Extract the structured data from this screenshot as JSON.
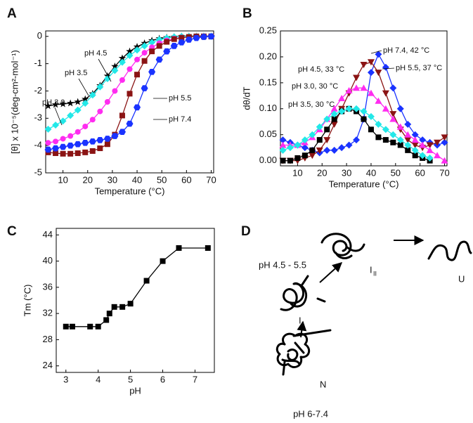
{
  "chart_data": [
    {
      "type": "line",
      "panel_label": "A",
      "xlabel": "Temperature (°C)",
      "ylabel": "[θ] x 10⁻⁵(deg-cm²-mol⁻¹)",
      "x": [
        4,
        7,
        10,
        13,
        16,
        19,
        22,
        25,
        28,
        31,
        34,
        37,
        40,
        43,
        46,
        49,
        52,
        55,
        58,
        61,
        64,
        67,
        70
      ],
      "xlim": [
        3,
        71
      ],
      "xticks": [
        10,
        20,
        30,
        40,
        50,
        60,
        70
      ],
      "ylim": [
        -5,
        0.2
      ],
      "yticks": [
        0,
        -1,
        -2,
        -3,
        -4,
        -5
      ],
      "series": [
        {
          "name": "pH 3.0",
          "color": "#000000",
          "marker": "star",
          "values": [
            -2.55,
            -2.5,
            -2.48,
            -2.45,
            -2.4,
            -2.3,
            -2.1,
            -1.8,
            -1.45,
            -1.1,
            -0.8,
            -0.55,
            -0.38,
            -0.25,
            -0.15,
            -0.08,
            -0.04,
            -0.02,
            0,
            0,
            0,
            0,
            0
          ]
        },
        {
          "name": "pH 3.5",
          "color": "#22e8e8",
          "marker": "diamond",
          "values": [
            -3.4,
            -3.25,
            -3.1,
            -2.9,
            -2.7,
            -2.45,
            -2.15,
            -1.85,
            -1.55,
            -1.25,
            -0.95,
            -0.7,
            -0.5,
            -0.35,
            -0.22,
            -0.12,
            -0.06,
            -0.02,
            0,
            0,
            0,
            0,
            0
          ]
        },
        {
          "name": "pH 4.5",
          "color": "#ff2cf0",
          "marker": "circle",
          "values": [
            -3.9,
            -3.85,
            -3.75,
            -3.65,
            -3.5,
            -3.3,
            -3.05,
            -2.75,
            -2.4,
            -2.0,
            -1.6,
            -1.2,
            -0.85,
            -0.6,
            -0.4,
            -0.25,
            -0.15,
            -0.08,
            -0.04,
            -0.02,
            0,
            0,
            0
          ]
        },
        {
          "name": "pH 5.5",
          "color": "#8b1414",
          "marker": "square",
          "values": [
            -4.25,
            -4.28,
            -4.3,
            -4.3,
            -4.28,
            -4.25,
            -4.2,
            -4.1,
            -3.95,
            -3.6,
            -2.9,
            -2.1,
            -1.4,
            -0.9,
            -0.55,
            -0.35,
            -0.2,
            -0.1,
            -0.05,
            -0.02,
            0,
            0,
            0
          ]
        },
        {
          "name": "pH 7.4",
          "color": "#1a33ff",
          "marker": "hexagon",
          "values": [
            -4.15,
            -4.1,
            -4.05,
            -4.0,
            -3.95,
            -3.9,
            -3.85,
            -3.8,
            -3.75,
            -3.65,
            -3.5,
            -3.2,
            -2.6,
            -1.9,
            -1.3,
            -0.85,
            -0.55,
            -0.35,
            -0.22,
            -0.12,
            -0.06,
            -0.02,
            0
          ]
        }
      ]
    },
    {
      "type": "line",
      "panel_label": "B",
      "xlabel": "Temperature (°C)",
      "ylabel": "dθ/dT",
      "x": [
        4,
        7,
        10,
        13,
        16,
        19,
        22,
        25,
        28,
        31,
        34,
        37,
        40,
        43,
        46,
        49,
        52,
        55,
        58,
        61,
        64,
        67,
        70
      ],
      "xlim": [
        3,
        71
      ],
      "xticks": [
        10,
        20,
        30,
        40,
        50,
        60,
        70
      ],
      "ylim": [
        -0.01,
        0.25
      ],
      "yticks": [
        {
          "value": 0,
          "label": "0.00"
        },
        0.05,
        {
          "value": 0.1,
          "label": "0.10"
        },
        0.15,
        {
          "value": 0.2,
          "label": "0.20"
        },
        0.25
      ],
      "series": [
        {
          "name": "pH 7.4, 42 °C",
          "color": "#1a33ff",
          "marker": "diamond",
          "values": [
            0.04,
            0.035,
            0.03,
            0.025,
            0.02,
            0.015,
            0.02,
            0.02,
            0.025,
            0.03,
            0.04,
            0.08,
            0.17,
            0.205,
            0.18,
            0.14,
            0.1,
            0.07,
            0.05,
            0.04,
            0.035,
            0.03,
            0.035
          ]
        },
        {
          "name": "pH 5.5, 37 °C",
          "color": "#8b1414",
          "marker": "tri-down",
          "values": [
            0.0,
            0.0,
            0.0,
            0.005,
            0.01,
            0.02,
            0.04,
            0.07,
            0.1,
            0.13,
            0.16,
            0.185,
            0.19,
            0.17,
            0.13,
            0.09,
            0.06,
            0.04,
            0.03,
            0.025,
            0.03,
            0.035,
            0.045
          ]
        },
        {
          "name": "pH 4.5, 33 °C",
          "color": "#ff2cf0",
          "marker": "tri-up",
          "values": [
            0.03,
            0.03,
            0.03,
            0.035,
            0.045,
            0.06,
            0.08,
            0.1,
            0.12,
            0.135,
            0.14,
            0.14,
            0.13,
            0.115,
            0.1,
            0.08,
            0.065,
            0.05,
            0.04,
            0.03,
            0.02,
            0.01,
            0.0
          ]
        },
        {
          "name": "pH 3.0, 30 °C",
          "color": "#000000",
          "marker": "square",
          "values": [
            0.0,
            0.0,
            0.005,
            0.01,
            0.02,
            0.04,
            0.06,
            0.08,
            0.095,
            0.1,
            0.095,
            0.08,
            0.06,
            0.045,
            0.04,
            0.035,
            0.03,
            0.02,
            0.01,
            0.005,
            0,
            null,
            null
          ]
        },
        {
          "name": "pH 3.5, 30 °C",
          "color": "#22e8e8",
          "marker": "diamond",
          "values": [
            0.02,
            0.025,
            0.03,
            0.04,
            0.05,
            0.065,
            0.08,
            0.09,
            0.095,
            0.1,
            0.1,
            0.095,
            0.085,
            0.07,
            0.06,
            0.05,
            0.04,
            0.03,
            0.02,
            0.01,
            0.005,
            null,
            null
          ]
        }
      ]
    },
    {
      "type": "line",
      "panel_label": "C",
      "xlabel": "pH",
      "ylabel": "Tm (°C)",
      "x": [
        3,
        3.2,
        3.75,
        4,
        4.25,
        4.35,
        4.5,
        4.75,
        5,
        5.5,
        6,
        6.5,
        7.4
      ],
      "values": [
        30,
        30,
        30,
        30,
        31,
        32,
        33,
        33,
        33.5,
        37,
        40,
        42,
        42
      ],
      "color": "#000000",
      "marker": "square",
      "xlim": [
        2.7,
        7.6
      ],
      "xticks": [
        3,
        4,
        5,
        6,
        7
      ],
      "ylim": [
        23,
        45
      ],
      "yticks": [
        24,
        28,
        32,
        36,
        40,
        44
      ]
    }
  ],
  "diagram": {
    "panel_label": "D",
    "nodes": [
      {
        "label": "N"
      },
      {
        "label": "I",
        "subscript": "I"
      },
      {
        "label": "I",
        "subscript": "II"
      },
      {
        "label": "U"
      }
    ],
    "conditions": [
      "pH 6-7.4",
      "pH 4.5 - 5.5"
    ]
  }
}
